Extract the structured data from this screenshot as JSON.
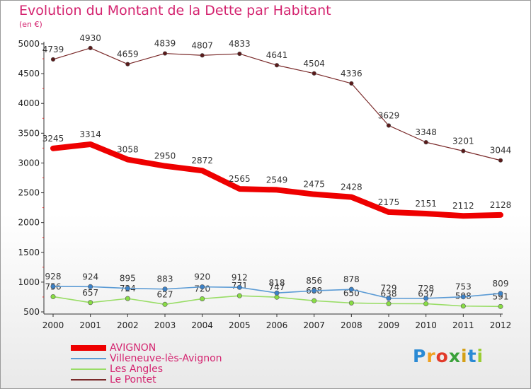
{
  "header": {
    "title": "Evolution du Montant de la Dette par Habitant",
    "subtitle": "(en €)"
  },
  "logo": {
    "letters": [
      "P",
      "r",
      "o",
      "x",
      "i",
      "t",
      "i"
    ],
    "colors": [
      "#2a8ad4",
      "#f0a020",
      "#e23a2a",
      "#3aa13a",
      "#d4a017",
      "#2a8ad4",
      "#9acd32"
    ]
  },
  "chart_data": {
    "type": "line",
    "title": "Evolution du Montant de la Dette par Habitant",
    "ylabel": "(en €)",
    "xlabel": "",
    "x": [
      "2000",
      "2001",
      "2002",
      "2003",
      "2004",
      "2005",
      "2006",
      "2007",
      "2008",
      "2009",
      "2010",
      "2011",
      "2012"
    ],
    "ylim": [
      500,
      5000
    ],
    "yticks": [
      500,
      1000,
      1500,
      2000,
      2500,
      3000,
      3500,
      4000,
      4500,
      5000
    ],
    "grid": false,
    "legend_position": "bottom-left",
    "series": [
      {
        "name": "AVIGNON",
        "color": "#ee0000",
        "values": [
          3245,
          3314,
          3058,
          2950,
          2872,
          2565,
          2549,
          2475,
          2428,
          2175,
          2151,
          2112,
          2128
        ]
      },
      {
        "name": "Villeneuve-lès-Avignon",
        "color": "#5b9bd5",
        "values": [
          928,
          924,
          895,
          883,
          920,
          912,
          818,
          856,
          878,
          729,
          728,
          753,
          809
        ]
      },
      {
        "name": "Les Angles",
        "color": "#99dd66",
        "values": [
          756,
          657,
          724,
          627,
          720,
          771,
          747,
          688,
          650,
          638,
          637,
          598,
          591
        ]
      },
      {
        "name": "Le Pontet",
        "color": "#7a2a2a",
        "values": [
          4739,
          4930,
          4659,
          4839,
          4807,
          4833,
          4641,
          4504,
          4336,
          3629,
          3348,
          3201,
          3044
        ]
      }
    ]
  }
}
